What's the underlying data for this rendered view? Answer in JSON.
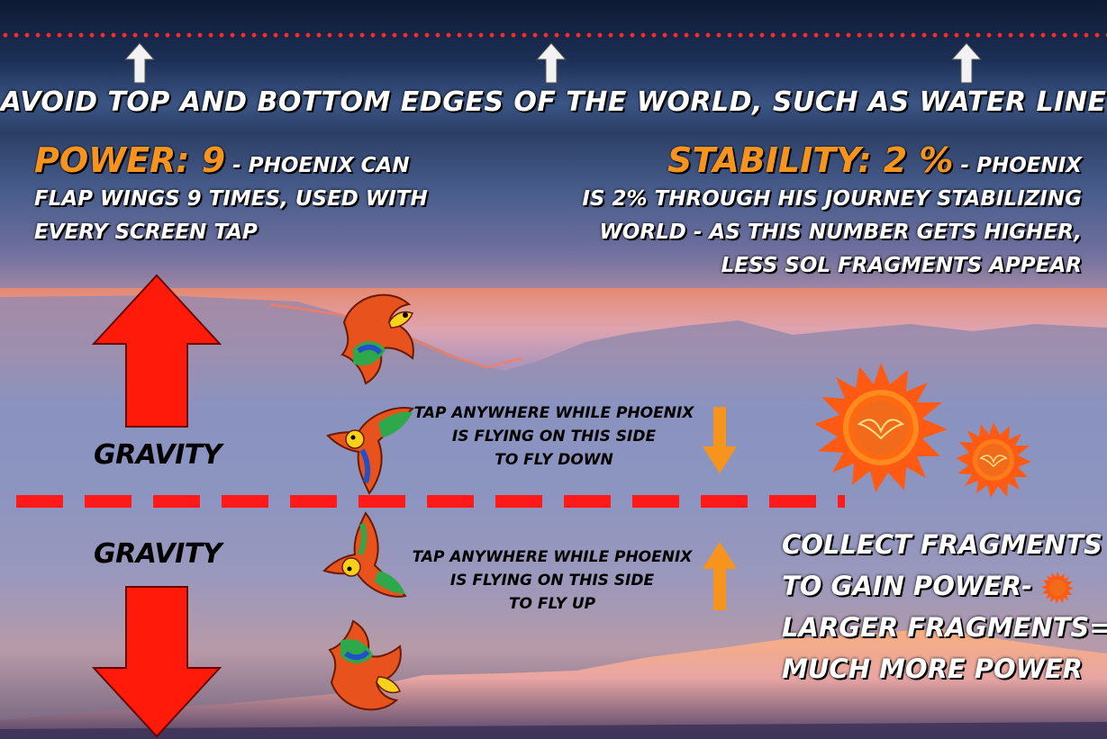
{
  "top_banner": {
    "headline": "AVOID TOP AND BOTTOM EDGES OF THE WORLD, SUCH AS WATER LINE"
  },
  "power": {
    "label": "POWER: 9",
    "desc_line1": "- PHOENIX CAN",
    "desc_line2": "FLAP WINGS 9 TIMES, USED WITH",
    "desc_line3": "EVERY SCREEN TAP",
    "value": 9
  },
  "stability": {
    "label": "STABILITY: 2 %",
    "desc_line1": " - PHOENIX",
    "desc_line2": "IS 2% THROUGH HIS JOURNEY STABILIZING",
    "desc_line3": "WORLD - AS THIS NUMBER GETS HIGHER,",
    "desc_line4": "LESS SOL FRAGMENTS APPEAR",
    "value_percent": 2
  },
  "gravity": {
    "top_label": "GRAVITY",
    "bottom_label": "GRAVITY"
  },
  "tap_top": {
    "line1": "TAP ANYWHERE WHILE PHOENIX",
    "line2": "IS FLYING ON THIS SIDE",
    "line3": "TO FLY DOWN"
  },
  "tap_bottom": {
    "line1": "TAP ANYWHERE WHILE PHOENIX",
    "line2": "IS FLYING ON THIS SIDE",
    "line3": "TO FLY UP"
  },
  "collect": {
    "line1": "COLLECT FRAGMENTS",
    "line2": "TO GAIN POWER-",
    "line3": "LARGER FRAGMENTS=",
    "line4": "MUCH MORE POWER"
  },
  "colors": {
    "accent_orange": "#f7941d",
    "danger_red": "#ff1a1a",
    "text_white": "#ffffff",
    "text_black": "#000000"
  },
  "icons": [
    "up-arrow-icon",
    "down-arrow-icon",
    "phoenix-sprite",
    "sol-fragment-icon"
  ]
}
